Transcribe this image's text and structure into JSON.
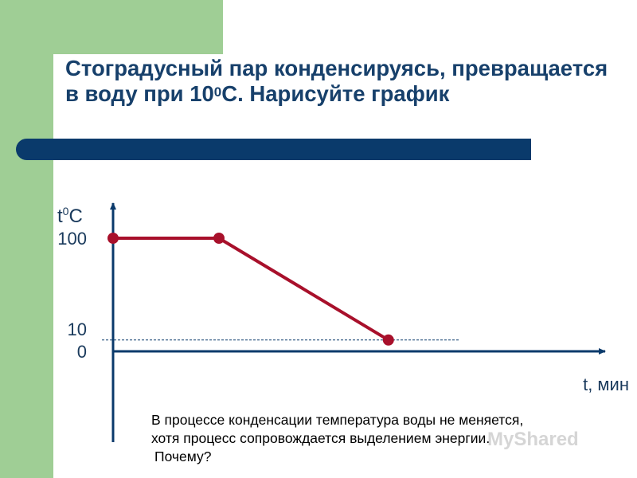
{
  "colors": {
    "green": "#9fce95",
    "navy": "#0a3a6b",
    "title_text": "#17406b",
    "line": "#a8102b",
    "text": "#1a3a5c"
  },
  "slide": {
    "title_part1": "Стоградусный пар конденсируясь, превращается в воду при 10",
    "title_sup": "0",
    "title_part2": "С. Нарисуйте график",
    "note_lines": [
      "В процессе конденсации температура воды не меняется,",
      "хотя процесс сопровождается выделением энергии.",
      "Почему?"
    ],
    "watermark": "MyShared"
  },
  "chart_data": {
    "type": "line",
    "ylabel": "t",
    "ylabel_sup": "0",
    "ylabel_unit": "C",
    "xlabel": "t, мин",
    "y_ticks": [
      {
        "value": 0,
        "label": "0"
      },
      {
        "value": 10,
        "label": "10"
      },
      {
        "value": 100,
        "label": "100"
      }
    ],
    "ylim": [
      0,
      115
    ],
    "reference_line": {
      "y": 10,
      "style": "dashed"
    },
    "series": [
      {
        "points": [
          {
            "x": 0,
            "y": 100
          },
          {
            "x": 1,
            "y": 100
          },
          {
            "x": 2.6,
            "y": 10
          }
        ]
      }
    ]
  }
}
